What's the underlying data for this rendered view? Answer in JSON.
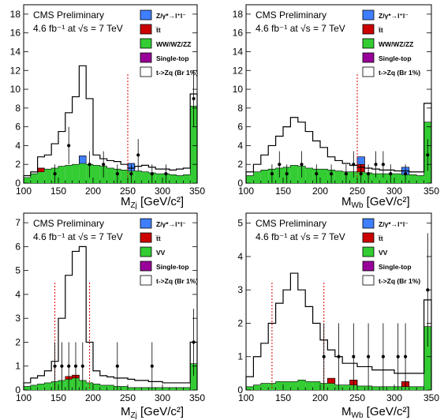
{
  "colors": {
    "zjets": "#3f7fff",
    "ttbar": "#cc0000",
    "diboson": "#33cc33",
    "single_top": "#990099",
    "signal": "#000000",
    "data": "#000000",
    "cut_line": "#dd0000"
  },
  "chart_data": [
    {
      "type": "histogram",
      "header": {
        "line1": "CMS Preliminary",
        "line2": "4.6 fb⁻¹ at √s = 7 TeV"
      },
      "xlabel": {
        "var": "M",
        "sub": "Zj",
        "unit": "[GeV/c²]"
      },
      "xlim": [
        100,
        350
      ],
      "ylim": [
        0,
        19
      ],
      "xticks": [
        100,
        150,
        200,
        250,
        300,
        350
      ],
      "yticks": [
        0,
        2,
        4,
        6,
        8,
        10,
        12,
        14,
        16,
        18
      ],
      "legend": [
        "Z/γ*→l⁺l⁻",
        "t̅t",
        "WW/WZ/ZZ",
        "Single-top",
        "t->Zq (Br 1%)"
      ],
      "cut_lines": [
        250
      ],
      "bin_edges": [
        100,
        110,
        120,
        130,
        140,
        150,
        160,
        170,
        180,
        190,
        200,
        210,
        220,
        230,
        240,
        250,
        260,
        270,
        280,
        290,
        300,
        310,
        320,
        330,
        340,
        350
      ],
      "stack": {
        "diboson": [
          0.6,
          1.0,
          1.2,
          1.5,
          1.6,
          1.8,
          1.9,
          2.0,
          2.1,
          2.0,
          1.9,
          1.8,
          1.6,
          1.5,
          1.4,
          1.3,
          1.3,
          1.2,
          1.1,
          1.0,
          1.0,
          0.9,
          0.8,
          0.9,
          8.2
        ],
        "ttbar": [
          0,
          0,
          0.4,
          0,
          0,
          0,
          0,
          0,
          0,
          0,
          0,
          0,
          0,
          0,
          0,
          0,
          0,
          0,
          0,
          0,
          0,
          0,
          0,
          0,
          0
        ],
        "zjets": [
          0,
          0,
          0,
          0,
          0,
          0,
          0,
          0,
          0.8,
          0,
          0,
          0,
          0,
          0,
          0,
          0.8,
          0,
          0,
          0,
          0,
          0,
          0,
          0,
          0,
          0
        ]
      },
      "signal": [
        0.8,
        1.2,
        2.8,
        3.0,
        4.2,
        5.5,
        7.5,
        9.2,
        12.5,
        9.0,
        3.0,
        2.6,
        2.4,
        2.3,
        2.0,
        1.6,
        1.8,
        1.9,
        1.7,
        1.5,
        1.5,
        1.4,
        1.5,
        1.6,
        9.5
      ],
      "points": {
        "x": [
          145,
          165,
          195,
          215,
          235,
          255,
          265,
          285,
          305,
          345
        ],
        "y": [
          1,
          4,
          2,
          2,
          1,
          1,
          3,
          1,
          1,
          9
        ],
        "err": [
          1.0,
          2.0,
          1.4,
          1.4,
          1.0,
          1.0,
          1.7,
          1.0,
          1.0,
          3.0
        ]
      }
    },
    {
      "type": "histogram",
      "header": {
        "line1": "CMS Preliminary",
        "line2": "4.6 fb⁻¹ at √s = 7 TeV"
      },
      "xlabel": {
        "var": "M",
        "sub": "Wb",
        "unit": "[GeV/c²]"
      },
      "xlim": [
        100,
        350
      ],
      "ylim": [
        0,
        19
      ],
      "xticks": [
        100,
        150,
        200,
        250,
        300,
        350
      ],
      "yticks": [
        0,
        2,
        4,
        6,
        8,
        10,
        12,
        14,
        16,
        18
      ],
      "legend": [
        "Z/γ*→l⁺l⁻",
        "t̅t",
        "WW/WZ/ZZ",
        "Single-top",
        "t->Zq (Br 1%)"
      ],
      "cut_lines": [
        250
      ],
      "bin_edges": [
        100,
        110,
        120,
        130,
        140,
        150,
        160,
        170,
        180,
        190,
        200,
        210,
        220,
        230,
        240,
        250,
        260,
        270,
        280,
        290,
        300,
        310,
        320,
        330,
        340,
        350
      ],
      "stack": {
        "diboson": [
          0.8,
          1.2,
          1.4,
          1.5,
          1.6,
          1.7,
          1.9,
          1.8,
          1.6,
          1.5,
          1.5,
          1.4,
          1.3,
          1.2,
          1.2,
          1.2,
          1.1,
          1.0,
          1.0,
          1.0,
          1.0,
          0.9,
          0.9,
          0.8,
          6.5
        ],
        "ttbar": [
          0,
          0,
          0,
          0,
          0,
          0,
          0,
          0,
          0,
          0,
          0,
          0,
          0,
          0,
          0,
          0.8,
          0,
          0,
          0,
          0,
          0,
          0,
          0,
          0,
          0
        ],
        "zjets": [
          0,
          0,
          0,
          0,
          0,
          0,
          0,
          0,
          0,
          0,
          0,
          0,
          0,
          0,
          0,
          0.8,
          0,
          0,
          0,
          0,
          0,
          0.8,
          0,
          0,
          0
        ]
      },
      "signal": [
        1.2,
        2.0,
        3.0,
        4.0,
        5.0,
        6.0,
        7.0,
        6.5,
        5.5,
        4.5,
        3.8,
        2.8,
        2.4,
        2.1,
        1.9,
        1.7,
        1.6,
        1.5,
        1.4,
        1.4,
        1.3,
        1.3,
        1.2,
        1.2,
        8.5
      ],
      "points": {
        "x": [
          135,
          145,
          155,
          175,
          195,
          215,
          235,
          245,
          255,
          265,
          275,
          285,
          295,
          315,
          345
        ],
        "y": [
          1,
          2,
          1,
          2,
          1,
          1,
          1,
          2,
          1,
          1,
          2,
          2,
          1,
          1,
          3
        ],
        "err": [
          1.0,
          1.4,
          1.0,
          1.4,
          1.0,
          1.0,
          1.0,
          1.4,
          1.0,
          1.0,
          1.4,
          1.4,
          1.0,
          1.0,
          1.7
        ]
      }
    },
    {
      "type": "histogram",
      "header": {
        "line1": "CMS Preliminary",
        "line2": "4.6 fb⁻¹ at √s = 7 TeV"
      },
      "xlabel": {
        "var": "M",
        "sub": "Zj",
        "unit": "[GeV/c²]"
      },
      "xlim": [
        100,
        350
      ],
      "ylim": [
        0,
        7.4
      ],
      "xticks": [
        100,
        150,
        200,
        250,
        300,
        350
      ],
      "yticks": [
        0,
        1,
        2,
        3,
        4,
        5,
        6,
        7
      ],
      "legend": [
        "Z/γ*→l⁺l⁻",
        "t̅t",
        "VV",
        "Single-top",
        "t->Zq (Br 1%)"
      ],
      "cut_lines": [
        145,
        195
      ],
      "bin_edges": [
        100,
        110,
        120,
        130,
        140,
        150,
        160,
        170,
        180,
        190,
        200,
        210,
        220,
        230,
        240,
        250,
        260,
        270,
        280,
        290,
        300,
        310,
        320,
        330,
        340,
        350
      ],
      "stack": {
        "diboson": [
          0.15,
          0.2,
          0.25,
          0.3,
          0.35,
          0.4,
          0.45,
          0.5,
          0.4,
          0.3,
          0.25,
          0.2,
          0.2,
          0.15,
          0.15,
          0.1,
          0.1,
          0.1,
          0.1,
          0.1,
          0.1,
          0.1,
          0.1,
          0.1,
          1.1
        ],
        "ttbar": [
          0,
          0,
          0,
          0,
          0,
          0,
          0.12,
          0.12,
          0,
          0,
          0,
          0,
          0,
          0,
          0,
          0,
          0,
          0,
          0,
          0,
          0,
          0,
          0,
          0,
          0
        ],
        "zjets": [
          0,
          0,
          0,
          0,
          0,
          0,
          0,
          0,
          0,
          0,
          0,
          0,
          0,
          0,
          0,
          0,
          0,
          0,
          0,
          0,
          0,
          0,
          0,
          0,
          0
        ]
      },
      "signal": [
        0.3,
        0.5,
        0.6,
        0.8,
        1.2,
        3.0,
        4.8,
        5.8,
        6.0,
        2.0,
        0.8,
        0.6,
        0.55,
        0.5,
        0.5,
        0.45,
        0.4,
        0.4,
        0.35,
        0.35,
        0.3,
        0.3,
        0.3,
        0.3,
        2.0
      ],
      "points": {
        "x": [
          145,
          155,
          165,
          175,
          185,
          235,
          285,
          345
        ],
        "y": [
          1,
          1,
          1,
          1,
          1,
          1,
          1,
          2
        ],
        "err": [
          1.0,
          1.0,
          1.0,
          1.0,
          1.0,
          1.0,
          1.0,
          1.4
        ]
      }
    },
    {
      "type": "histogram",
      "header": {
        "line1": "CMS Preliminary",
        "line2": "4.6 fb⁻¹ at √s = 7 TeV"
      },
      "xlabel": {
        "var": "M",
        "sub": "Wb",
        "unit": "[GeV/c²]"
      },
      "xlim": [
        100,
        350
      ],
      "ylim": [
        0,
        5.3
      ],
      "xticks": [
        100,
        150,
        200,
        250,
        300,
        350
      ],
      "yticks": [
        0,
        1,
        2,
        3,
        4,
        5
      ],
      "legend": [
        "Z/γ*→l⁺l⁻",
        "t̅t",
        "VV",
        "Single-top",
        "t->Zq (Br 1%)"
      ],
      "cut_lines": [
        135,
        205
      ],
      "bin_edges": [
        100,
        110,
        120,
        130,
        140,
        150,
        160,
        170,
        180,
        190,
        200,
        210,
        220,
        230,
        240,
        250,
        260,
        270,
        280,
        290,
        300,
        310,
        320,
        330,
        340,
        350
      ],
      "stack": {
        "diboson": [
          0.1,
          0.15,
          0.2,
          0.2,
          0.25,
          0.25,
          0.25,
          0.3,
          0.25,
          0.25,
          0.2,
          0.2,
          0.15,
          0.15,
          0.15,
          0.12,
          0.12,
          0.1,
          0.1,
          0.1,
          0.1,
          0.1,
          0.1,
          0.1,
          1.9
        ],
        "ttbar": [
          0,
          0,
          0,
          0,
          0,
          0,
          0,
          0,
          0,
          0,
          0,
          0.15,
          0,
          0,
          0.15,
          0,
          0,
          0,
          0,
          0,
          0,
          0.15,
          0,
          0,
          0
        ],
        "zjets": [
          0,
          0,
          0,
          0,
          0,
          0,
          0,
          0,
          0,
          0,
          0,
          0,
          0,
          0,
          0,
          0,
          0,
          0,
          0,
          0,
          0,
          0,
          0,
          0,
          0
        ]
      },
      "signal": [
        0.4,
        1.0,
        1.4,
        2.0,
        2.6,
        3.0,
        3.5,
        3.0,
        2.5,
        2.0,
        1.5,
        1.2,
        1.0,
        0.8,
        0.8,
        0.7,
        0.7,
        0.6,
        0.6,
        0.6,
        0.5,
        0.5,
        0.5,
        0.5,
        2.7
      ],
      "points": {
        "x": [
          205,
          225,
          245,
          265,
          285,
          305,
          315,
          345
        ],
        "y": [
          1,
          1,
          1,
          1,
          1,
          1,
          1,
          3
        ],
        "err": [
          1.0,
          1.0,
          1.0,
          1.0,
          1.0,
          1.0,
          1.0,
          1.7
        ]
      }
    }
  ]
}
